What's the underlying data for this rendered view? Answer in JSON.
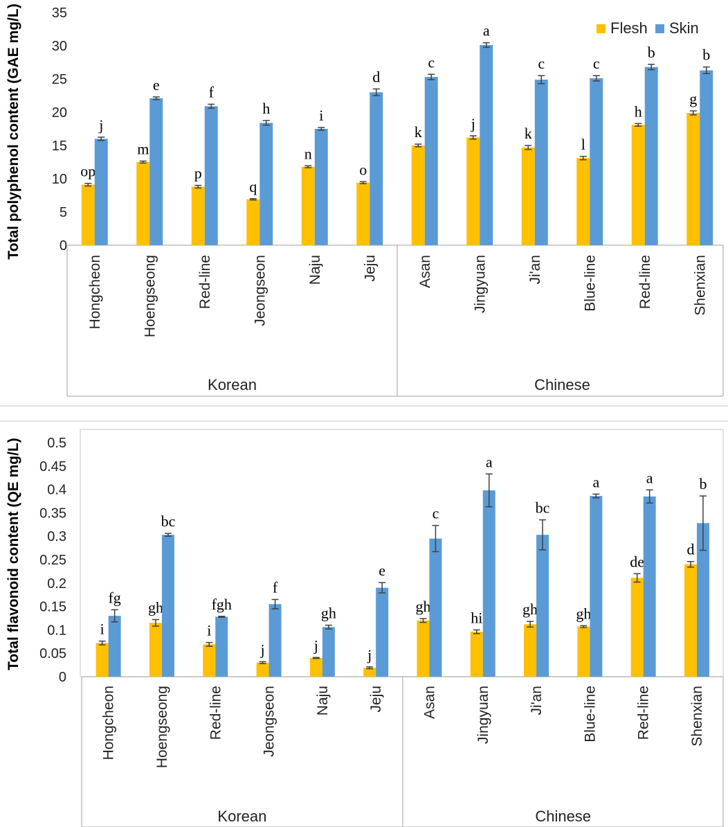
{
  "chart_data": [
    {
      "type": "bar",
      "title": "",
      "ylabel": "Total polyphenol content (GAE mg/L)",
      "xlabel": "",
      "ylim": [
        0,
        35
      ],
      "yticks": [
        0,
        5,
        10,
        15,
        20,
        25,
        30,
        35
      ],
      "ytick_labels": [
        "0",
        "5",
        "10",
        "15",
        "20",
        "25",
        "30",
        "35"
      ],
      "legend": {
        "position": "top-right",
        "entries": [
          "Flesh",
          "Skin"
        ]
      },
      "colors": {
        "Flesh": "#FFC000",
        "Skin": "#5B9BD5"
      },
      "categories": [
        "Hongcheon",
        "Hoengseong",
        "Red-line",
        "Jeongseon",
        "Naju",
        "Jeju",
        "Asan",
        "Jingyuan",
        "Ji'an",
        "Blue-line",
        "Red-line",
        "Shenxian"
      ],
      "groups": [
        {
          "name": "Korean",
          "count": 6
        },
        {
          "name": "Chinese",
          "count": 6
        }
      ],
      "series": [
        {
          "name": "Flesh",
          "values": [
            9.1,
            12.5,
            8.8,
            6.9,
            11.8,
            9.4,
            15.0,
            16.2,
            14.7,
            13.1,
            18.1,
            19.9
          ],
          "errors": [
            0.2,
            0.15,
            0.2,
            0.1,
            0.15,
            0.15,
            0.2,
            0.25,
            0.3,
            0.25,
            0.2,
            0.3
          ],
          "letters": [
            "op",
            "m",
            "p",
            "q",
            "n",
            "o",
            "k",
            "j",
            "k",
            "l",
            "h",
            "g"
          ]
        },
        {
          "name": "Skin",
          "values": [
            16.0,
            22.1,
            20.9,
            18.4,
            17.5,
            23.0,
            25.3,
            30.1,
            24.9,
            25.1,
            26.8,
            26.3
          ],
          "errors": [
            0.25,
            0.2,
            0.3,
            0.35,
            0.2,
            0.5,
            0.4,
            0.35,
            0.6,
            0.4,
            0.4,
            0.5
          ],
          "letters": [
            "j",
            "e",
            "f",
            "h",
            "i",
            "d",
            "c",
            "a",
            "c",
            "c",
            "b",
            "b"
          ]
        }
      ]
    },
    {
      "type": "bar",
      "title": "",
      "ylabel": "Total flavonoid content (QE mg/L)",
      "xlabel": "",
      "ylim": [
        0,
        0.5
      ],
      "yticks": [
        0,
        0.05,
        0.1,
        0.15,
        0.2,
        0.25,
        0.3,
        0.35,
        0.4,
        0.45,
        0.5
      ],
      "ytick_labels": [
        "0",
        "0.05",
        "0.1",
        "0.15",
        "0.2",
        "0.25",
        "0.3",
        "0.35",
        "0.4",
        "0.45",
        "0.5"
      ],
      "legend": {
        "position": "none",
        "entries": []
      },
      "colors": {
        "Flesh": "#FFC000",
        "Skin": "#5B9BD5"
      },
      "categories": [
        "Hongcheon",
        "Hoengseong",
        "Red-line",
        "Jeongseon",
        "Naju",
        "Jeju",
        "Asan",
        "Jingyuan",
        "Ji'an",
        "Blue-line",
        "Red-line",
        "Shenxian"
      ],
      "groups": [
        {
          "name": "Korean",
          "count": 6
        },
        {
          "name": "Chinese",
          "count": 6
        }
      ],
      "series": [
        {
          "name": "Flesh",
          "values": [
            0.072,
            0.115,
            0.069,
            0.03,
            0.04,
            0.019,
            0.12,
            0.096,
            0.112,
            0.107,
            0.211,
            0.24
          ],
          "errors": [
            0.004,
            0.007,
            0.004,
            0.002,
            0.001,
            0.002,
            0.004,
            0.004,
            0.006,
            0.002,
            0.009,
            0.006
          ],
          "letters": [
            "i",
            "gh",
            "i",
            "j",
            "j",
            "j",
            "gh",
            "hi",
            "gh",
            "gh",
            "de",
            "d"
          ]
        },
        {
          "name": "Skin",
          "values": [
            0.13,
            0.303,
            0.128,
            0.155,
            0.106,
            0.19,
            0.295,
            0.398,
            0.303,
            0.386,
            0.385,
            0.328
          ],
          "errors": [
            0.013,
            0.003,
            0.001,
            0.01,
            0.004,
            0.011,
            0.028,
            0.035,
            0.032,
            0.004,
            0.014,
            0.058
          ],
          "letters": [
            "fg",
            "bc",
            "fgh",
            "f",
            "gh",
            "e",
            "c",
            "a",
            "bc",
            "a",
            "a",
            "b"
          ]
        }
      ]
    }
  ]
}
